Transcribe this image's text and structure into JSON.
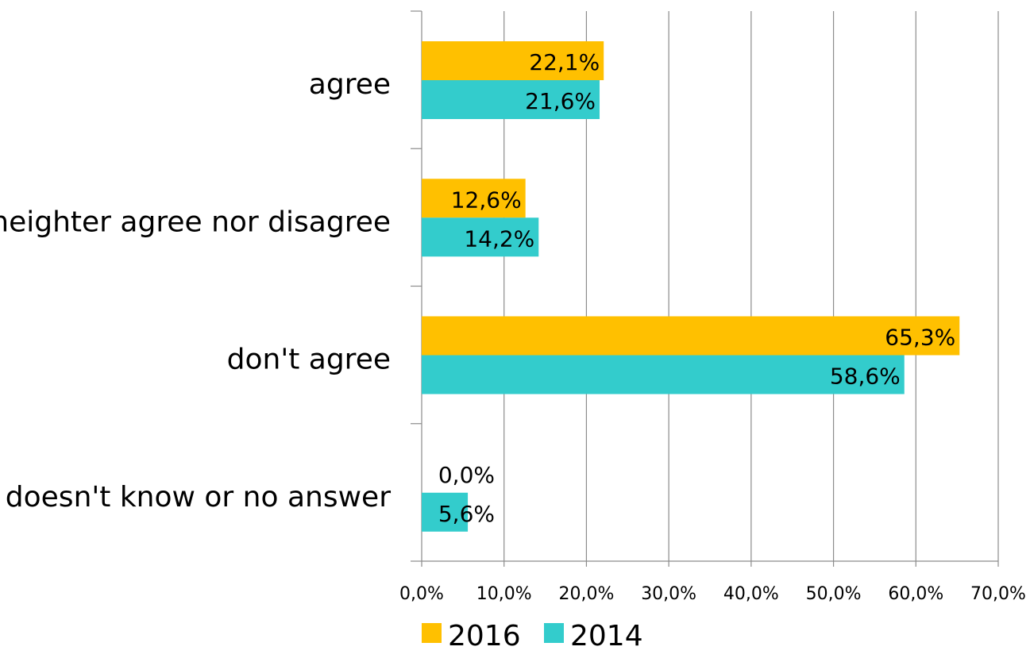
{
  "chart_data": {
    "type": "bar",
    "orientation": "horizontal",
    "categories": [
      "agree",
      "neighter agree nor disagree",
      "don't agree",
      "doesn't know or no answer"
    ],
    "series": [
      {
        "name": "2016",
        "color": "#FFC000",
        "values": [
          22.1,
          12.6,
          65.3,
          0.0
        ],
        "labels": [
          "22,1%",
          "12,6%",
          "65,3%",
          "0,0%"
        ]
      },
      {
        "name": "2014",
        "color": "#33CCCC",
        "values": [
          21.6,
          14.2,
          58.6,
          5.6
        ],
        "labels": [
          "21,6%",
          "14,2%",
          "58,6%",
          "5,6%"
        ]
      }
    ],
    "x_ticks": [
      "0,0%",
      "10,0%",
      "20,0%",
      "30,0%",
      "40,0%",
      "50,0%",
      "60,0%",
      "70,0%"
    ],
    "xlim": [
      0,
      70
    ],
    "grid": "vertical",
    "legend": "bottom"
  }
}
